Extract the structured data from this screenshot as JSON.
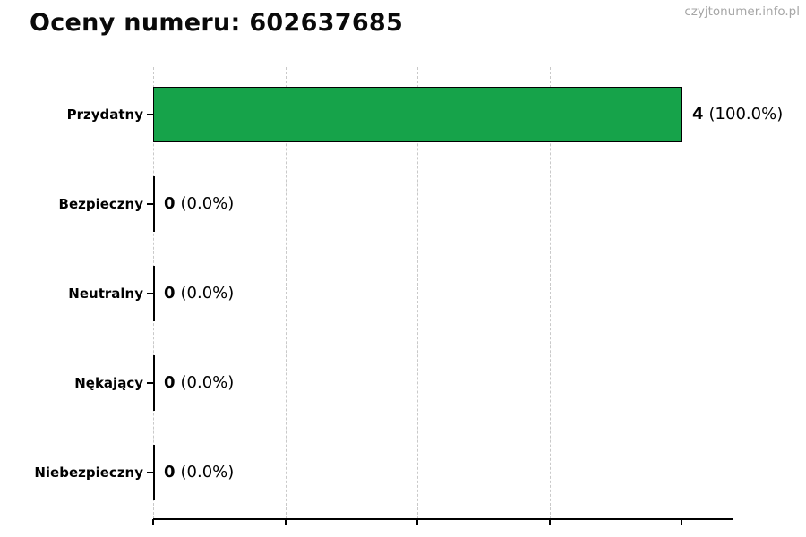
{
  "page": {
    "title": "Oceny numeru: 602637685",
    "watermark": "czyjtonumer.info.pl"
  },
  "chart_data": {
    "type": "bar",
    "orientation": "horizontal",
    "title": "Oceny numeru: 602637685",
    "categories": [
      "Przydatny",
      "Bezpieczny",
      "Neutralny",
      "Nękający",
      "Niebezpieczny"
    ],
    "values": [
      4,
      0,
      0,
      0,
      0
    ],
    "percentages": [
      100.0,
      0.0,
      0.0,
      0.0,
      0.0
    ],
    "value_labels": [
      "4 (100.0%)",
      "0 (0.0%)",
      "0 (0.0%)",
      "0 (0.0%)",
      "0 (0.0%)"
    ],
    "xlim": [
      0,
      4.4
    ],
    "x_ticks": [
      0,
      1,
      2,
      3,
      4
    ],
    "x_tick_labels_visible": false,
    "grid": "vertical-dashed",
    "legend": "none",
    "bar_color": "#16a34a",
    "bar_border_color": "#000000",
    "grid_color": "#c9c9c9",
    "background_color": "#ffffff",
    "watermark": "czyjtonumer.info.pl"
  },
  "rows": [
    {
      "category": "Przydatny",
      "value": "4",
      "pct": "(100.0%)"
    },
    {
      "category": "Bezpieczny",
      "value": "0",
      "pct": "(0.0%)"
    },
    {
      "category": "Neutralny",
      "value": "0",
      "pct": "(0.0%)"
    },
    {
      "category": "Nękający",
      "value": "0",
      "pct": "(0.0%)"
    },
    {
      "category": "Niebezpieczny",
      "value": "0",
      "pct": "(0.0%)"
    }
  ]
}
